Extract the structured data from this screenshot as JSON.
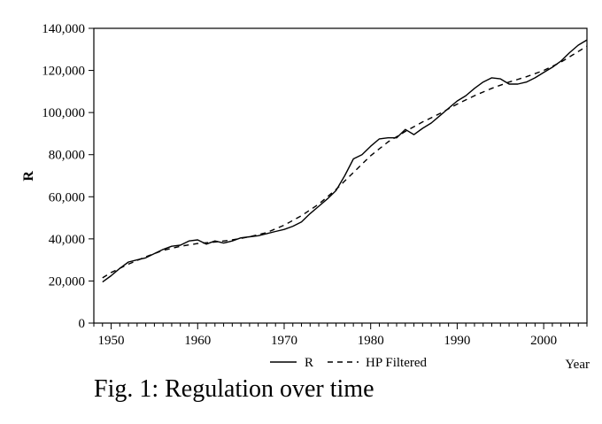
{
  "chart_data": {
    "type": "line",
    "title": "",
    "xlabel": "Year",
    "ylabel": "R",
    "xlim": [
      1948,
      2005
    ],
    "ylim": [
      0,
      140000
    ],
    "x_ticks": [
      1950,
      1960,
      1970,
      1980,
      1990,
      2000
    ],
    "x_tick_labels": [
      "1950",
      "1960",
      "1970",
      "1980",
      "1990",
      "2000"
    ],
    "y_ticks": [
      0,
      20000,
      40000,
      60000,
      80000,
      100000,
      120000,
      140000
    ],
    "y_tick_labels": [
      "0",
      "20,000",
      "40,000",
      "60,000",
      "80,000",
      "100,000",
      "120,000",
      "140,000"
    ],
    "grid": false,
    "legend_position": "bottom-center",
    "series": [
      {
        "name": "R",
        "style": "solid",
        "color": "#000000",
        "points": [
          [
            1949,
            19500
          ],
          [
            1950,
            22500
          ],
          [
            1951,
            26000
          ],
          [
            1952,
            29000
          ],
          [
            1953,
            30000
          ],
          [
            1954,
            31000
          ],
          [
            1955,
            33000
          ],
          [
            1956,
            35000
          ],
          [
            1957,
            36500
          ],
          [
            1958,
            37000
          ],
          [
            1959,
            39000
          ],
          [
            1960,
            39500
          ],
          [
            1961,
            37500
          ],
          [
            1962,
            39000
          ],
          [
            1963,
            38000
          ],
          [
            1964,
            39000
          ],
          [
            1965,
            40500
          ],
          [
            1966,
            41000
          ],
          [
            1967,
            41500
          ],
          [
            1968,
            42500
          ],
          [
            1969,
            43500
          ],
          [
            1970,
            44500
          ],
          [
            1971,
            46000
          ],
          [
            1972,
            48000
          ],
          [
            1973,
            52000
          ],
          [
            1974,
            55500
          ],
          [
            1975,
            59000
          ],
          [
            1976,
            63000
          ],
          [
            1977,
            70000
          ],
          [
            1978,
            78000
          ],
          [
            1979,
            80000
          ],
          [
            1980,
            84000
          ],
          [
            1981,
            87500
          ],
          [
            1982,
            88000
          ],
          [
            1983,
            88000
          ],
          [
            1984,
            92000
          ],
          [
            1985,
            89500
          ],
          [
            1986,
            92500
          ],
          [
            1987,
            95000
          ],
          [
            1988,
            98500
          ],
          [
            1989,
            102000
          ],
          [
            1990,
            105500
          ],
          [
            1991,
            108000
          ],
          [
            1992,
            111500
          ],
          [
            1993,
            114500
          ],
          [
            1994,
            116500
          ],
          [
            1995,
            116000
          ],
          [
            1996,
            113500
          ],
          [
            1997,
            113500
          ],
          [
            1998,
            114500
          ],
          [
            1999,
            116500
          ],
          [
            2000,
            119000
          ],
          [
            2001,
            121500
          ],
          [
            2002,
            124500
          ],
          [
            2003,
            128500
          ],
          [
            2004,
            132000
          ],
          [
            2005,
            134500
          ]
        ]
      },
      {
        "name": "HP Filtered",
        "style": "dashed",
        "color": "#000000",
        "points": [
          [
            1949,
            21500
          ],
          [
            1950,
            24000
          ],
          [
            1952,
            28000
          ],
          [
            1954,
            31500
          ],
          [
            1956,
            34500
          ],
          [
            1958,
            36500
          ],
          [
            1960,
            37800
          ],
          [
            1962,
            38500
          ],
          [
            1964,
            39500
          ],
          [
            1966,
            41000
          ],
          [
            1968,
            43000
          ],
          [
            1970,
            46500
          ],
          [
            1972,
            51000
          ],
          [
            1974,
            56500
          ],
          [
            1976,
            63500
          ],
          [
            1978,
            71500
          ],
          [
            1980,
            79500
          ],
          [
            1982,
            86000
          ],
          [
            1984,
            91000
          ],
          [
            1986,
            95500
          ],
          [
            1988,
            99500
          ],
          [
            1990,
            104000
          ],
          [
            1992,
            108000
          ],
          [
            1994,
            111500
          ],
          [
            1996,
            114500
          ],
          [
            1998,
            117000
          ],
          [
            2000,
            120000
          ],
          [
            2002,
            124000
          ],
          [
            2004,
            129000
          ],
          [
            2005,
            131500
          ]
        ]
      }
    ]
  },
  "caption": "Fig. 1: Regulation over time"
}
